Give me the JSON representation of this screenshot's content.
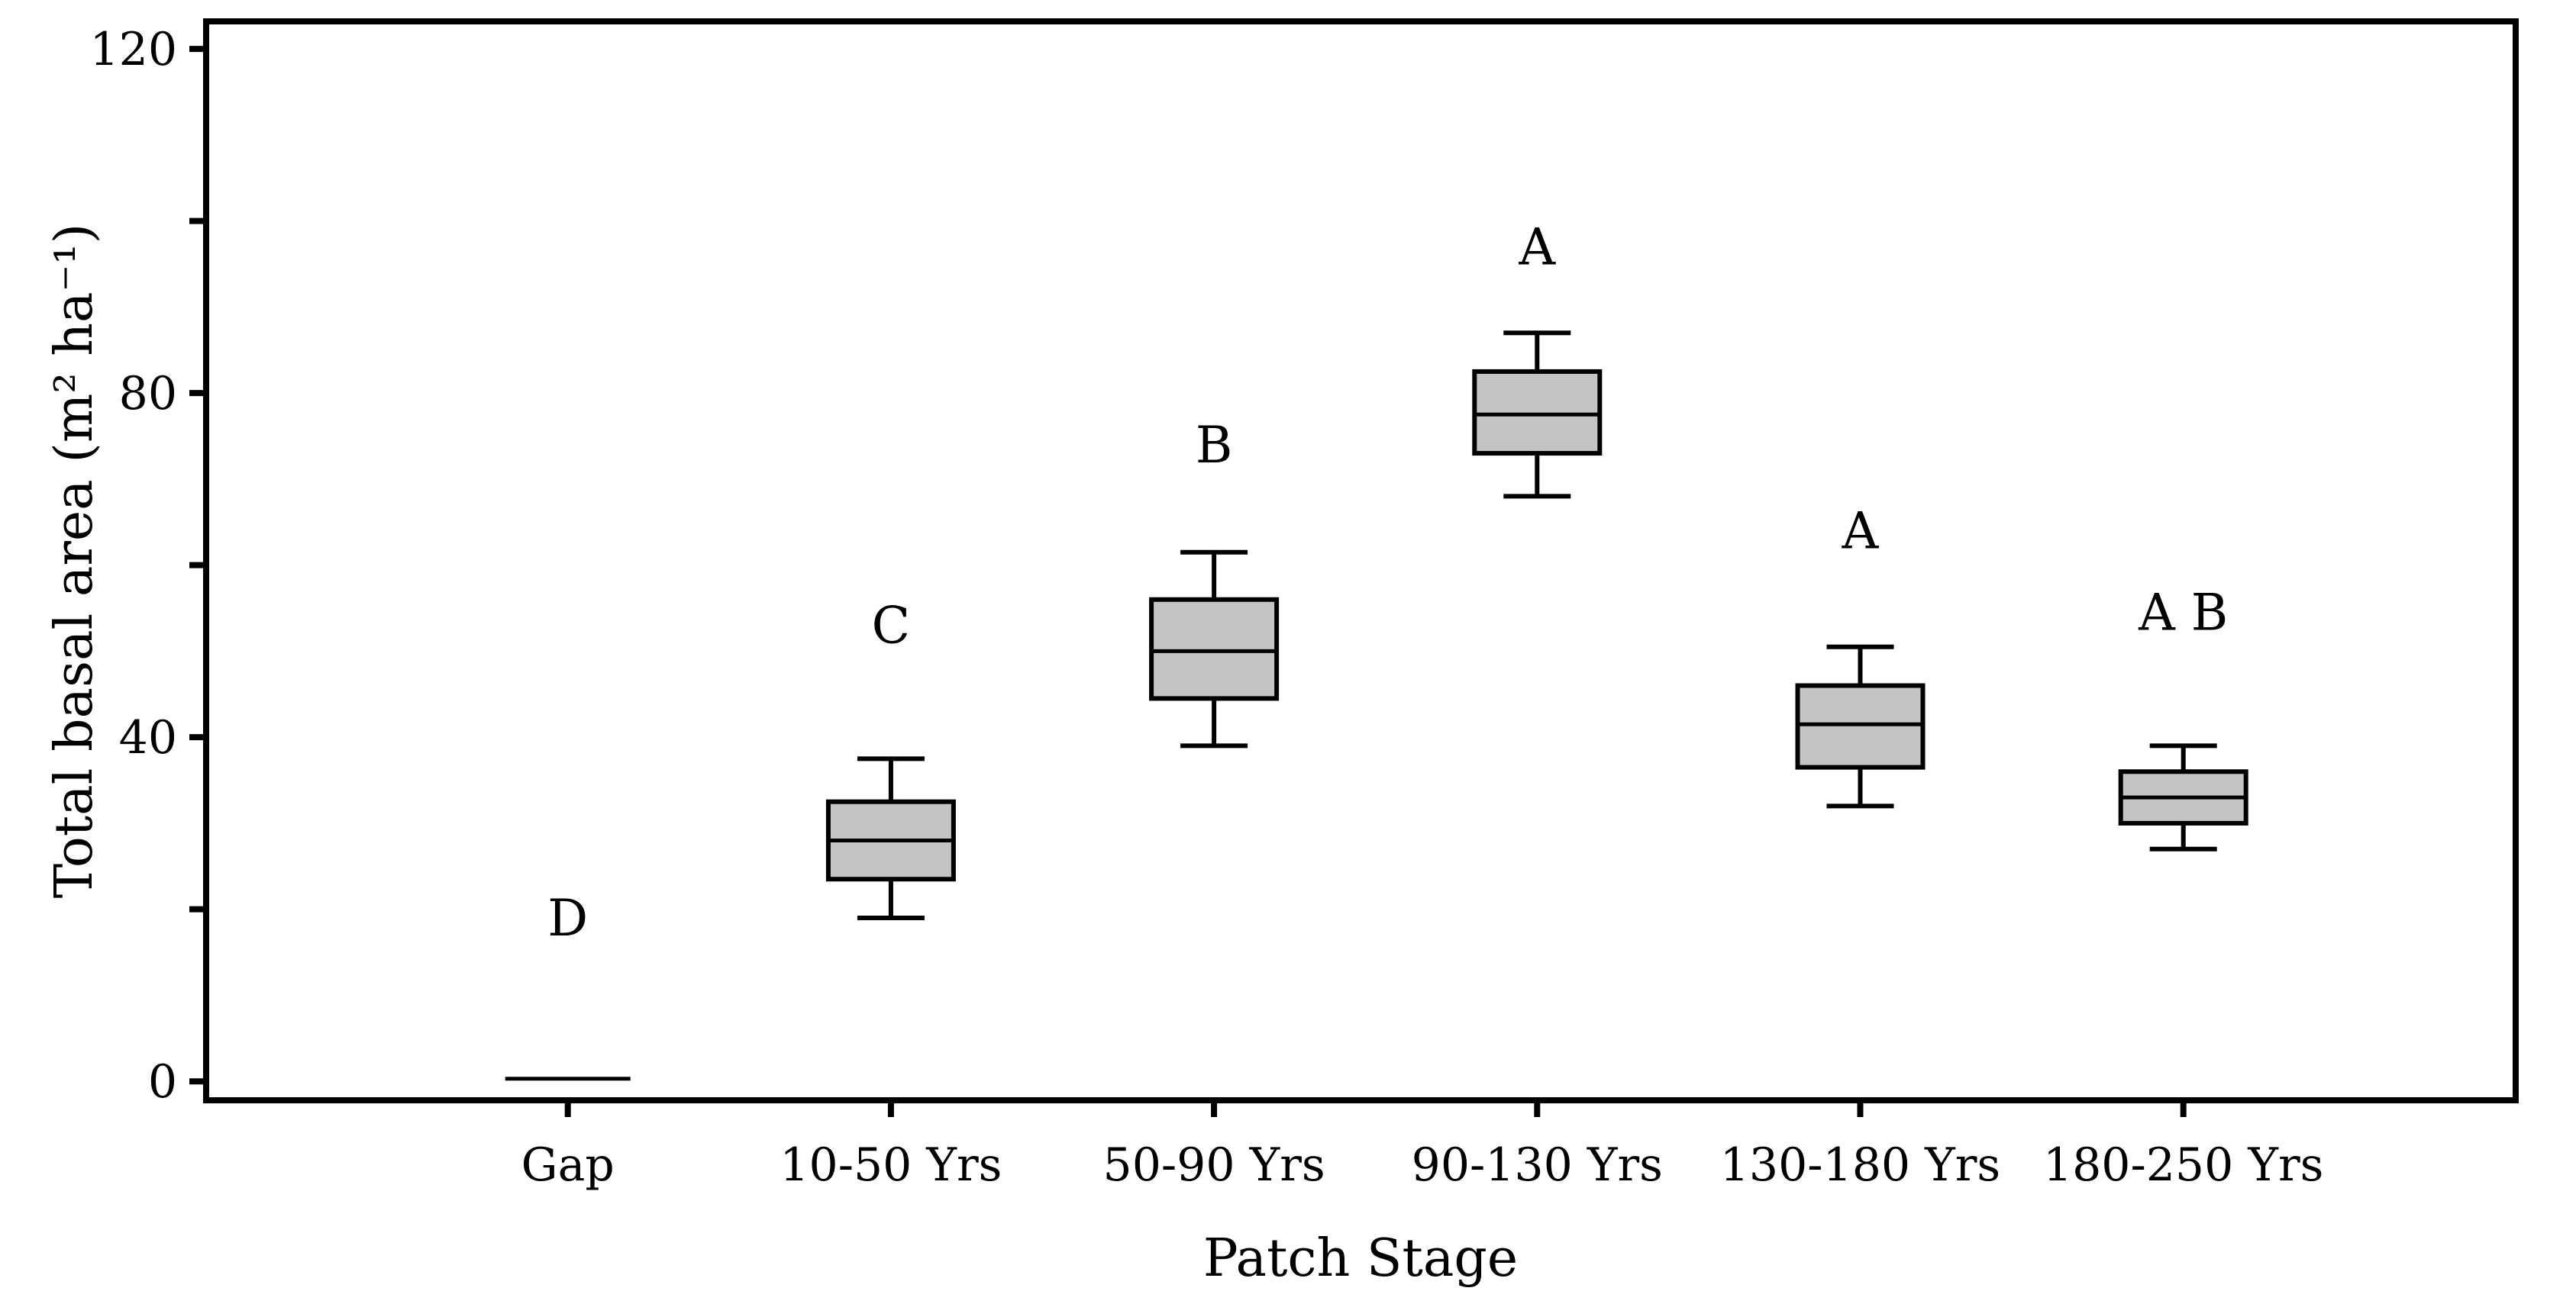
{
  "chart_data": {
    "type": "boxplot",
    "title": "",
    "xlabel": "Patch Stage",
    "ylabel": "Total basal area (m² ha⁻¹)",
    "ylim": [
      -2.2,
      123.2
    ],
    "yticks_major": [
      0,
      40,
      80,
      120
    ],
    "yticks_minor": [
      20,
      60,
      100
    ],
    "grid": false,
    "legend": "none",
    "background_color": "#ffffff",
    "box_fill_color": "#c4c4c4",
    "line_color": "#000000",
    "categories": [
      "Gap",
      "10-50 Yrs",
      "50-90 Yrs",
      "90-130 Yrs",
      "130-180 Yrs",
      "180-250 Yrs"
    ],
    "series": [
      {
        "category": "Gap",
        "whisker_low": null,
        "q1": null,
        "median": 0.3,
        "q3": null,
        "whisker_high": null,
        "letter": "D",
        "letter_y": 19
      },
      {
        "category": "10-50 Yrs",
        "whisker_low": 19,
        "q1": 23.5,
        "median": 28,
        "q3": 32.5,
        "whisker_high": 37.5,
        "letter": "C",
        "letter_y": 53
      },
      {
        "category": "50-90 Yrs",
        "whisker_low": 39,
        "q1": 44.5,
        "median": 50,
        "q3": 56,
        "whisker_high": 61.5,
        "letter": "B",
        "letter_y": 74
      },
      {
        "category": "90-130 Yrs",
        "whisker_low": 68,
        "q1": 73,
        "median": 77.5,
        "q3": 82.5,
        "whisker_high": 87,
        "letter": "A",
        "letter_y": 97
      },
      {
        "category": "130-180 Yrs",
        "whisker_low": 32,
        "q1": 36.5,
        "median": 41.5,
        "q3": 46,
        "whisker_high": 50.5,
        "letter": "A",
        "letter_y": 64
      },
      {
        "category": "180-250 Yrs",
        "whisker_low": 27,
        "q1": 30,
        "median": 33,
        "q3": 36,
        "whisker_high": 39,
        "letter": "A B",
        "letter_y": 54.5
      }
    ]
  }
}
